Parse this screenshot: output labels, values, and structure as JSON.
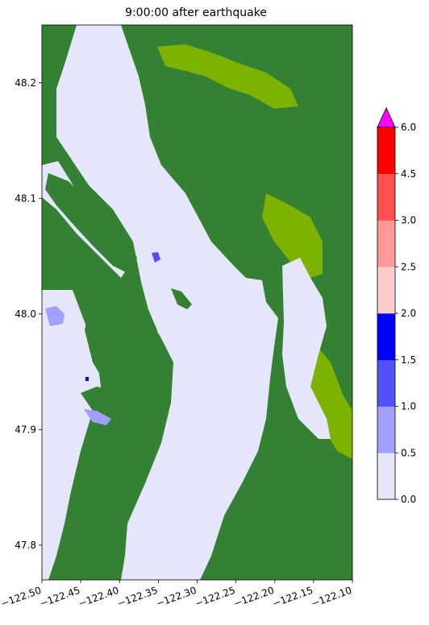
{
  "chart_data": {
    "type": "heatmap",
    "title": "9:00:00 after earthquake",
    "xlabel": "",
    "ylabel": "",
    "xlim": [
      -122.5,
      -122.1
    ],
    "ylim": [
      47.77,
      48.25
    ],
    "x_ticks": [
      -122.5,
      -122.45,
      -122.4,
      -122.35,
      -122.3,
      -122.25,
      -122.2,
      -122.15,
      -122.1
    ],
    "x_tick_labels": [
      "−122.50",
      "−122.45",
      "−122.40",
      "−122.35",
      "−122.30",
      "−122.25",
      "−122.20",
      "−122.15",
      "−122.10"
    ],
    "y_ticks": [
      47.8,
      47.9,
      48.0,
      48.1,
      48.2
    ],
    "y_tick_labels": [
      "47.8",
      "47.9",
      "48.0",
      "48.1",
      "48.2"
    ],
    "grid": false,
    "colorbar": {
      "levels": [
        0.0,
        0.5,
        1.0,
        1.5,
        2.0,
        2.5,
        3.0,
        4.5,
        6.0
      ],
      "level_labels": [
        "0.0",
        "0.5",
        "1.0",
        "1.5",
        "2.0",
        "2.5",
        "3.0",
        "4.5",
        "6.0"
      ],
      "colors": [
        "#e6e6fa",
        "#a0a0ff",
        "#5050ff",
        "#0000ff",
        "#ffcccc",
        "#ff9999",
        "#ff5050",
        "#ff0000"
      ],
      "over_color": "#ff00ff",
      "extend": "max"
    },
    "land_colors": {
      "lowland": "#348134",
      "highland": "#7db300"
    }
  }
}
